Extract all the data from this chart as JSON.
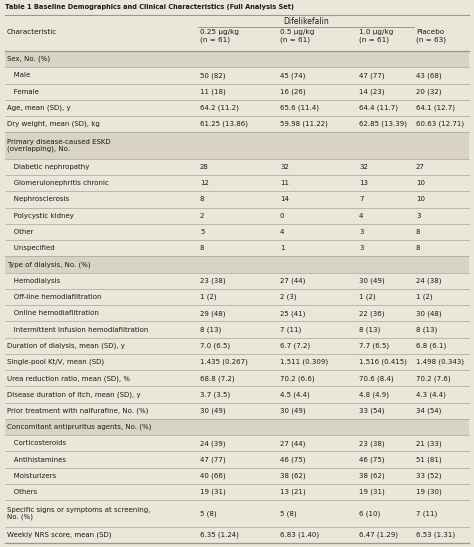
{
  "title": "Table 1 Baseline Demographics and Clinical Characteristics (Full Analysis Set)",
  "col_headers": [
    "Characteristic",
    "0.25 μg/kg\n(n = 61)",
    "0.5 μg/kg\n(n = 61)",
    "1.0 μg/kg\n(n = 61)",
    "Placebo\n(n = 63)"
  ],
  "group_header": "Difelikefalin",
  "rows": [
    {
      "label": "Sex, No. (%)",
      "indent": 0,
      "section": true,
      "vals": [
        "",
        "",
        "",
        ""
      ],
      "double_line": false
    },
    {
      "label": "   Male",
      "indent": 1,
      "section": false,
      "vals": [
        "50 (82)",
        "45 (74)",
        "47 (77)",
        "43 (68)"
      ],
      "double_line": false
    },
    {
      "label": "   Female",
      "indent": 1,
      "section": false,
      "vals": [
        "11 (18)",
        "16 (26)",
        "14 (23)",
        "20 (32)"
      ],
      "double_line": false
    },
    {
      "label": "Age, mean (SD), y",
      "indent": 0,
      "section": false,
      "vals": [
        "64.2 (11.2)",
        "65.6 (11.4)",
        "64.4 (11.7)",
        "64.1 (12.7)"
      ],
      "double_line": false
    },
    {
      "label": "Dry weight, mean (SD), kg",
      "indent": 0,
      "section": false,
      "vals": [
        "61.25 (13.86)",
        "59.98 (11.22)",
        "62.85 (13.39)",
        "60.63 (12.71)"
      ],
      "double_line": false
    },
    {
      "label": "Primary disease-caused ESKD\n(overlapping), No.",
      "indent": 0,
      "section": true,
      "vals": [
        "",
        "",
        "",
        ""
      ],
      "double_line": true
    },
    {
      "label": "   Diabetic nephropathy",
      "indent": 1,
      "section": false,
      "vals": [
        "28",
        "32",
        "32",
        "27"
      ],
      "double_line": false
    },
    {
      "label": "   Glomerulonephritis chronic",
      "indent": 1,
      "section": false,
      "vals": [
        "12",
        "11",
        "13",
        "10"
      ],
      "double_line": false
    },
    {
      "label": "   Nephrosclerosis",
      "indent": 1,
      "section": false,
      "vals": [
        "8",
        "14",
        "7",
        "10"
      ],
      "double_line": false
    },
    {
      "label": "   Polycystic kidney",
      "indent": 1,
      "section": false,
      "vals": [
        "2",
        "0",
        "4",
        "3"
      ],
      "double_line": false
    },
    {
      "label": "   Other",
      "indent": 1,
      "section": false,
      "vals": [
        "5",
        "4",
        "3",
        "8"
      ],
      "double_line": false
    },
    {
      "label": "   Unspecified",
      "indent": 1,
      "section": false,
      "vals": [
        "8",
        "1",
        "3",
        "8"
      ],
      "double_line": false
    },
    {
      "label": "Type of dialysis, No. (%)",
      "indent": 0,
      "section": true,
      "vals": [
        "",
        "",
        "",
        ""
      ],
      "double_line": false
    },
    {
      "label": "   Hemodialysis",
      "indent": 1,
      "section": false,
      "vals": [
        "23 (38)",
        "27 (44)",
        "30 (49)",
        "24 (38)"
      ],
      "double_line": false
    },
    {
      "label": "   Off-line hemodiafiltration",
      "indent": 1,
      "section": false,
      "vals": [
        "1 (2)",
        "2 (3)",
        "1 (2)",
        "1 (2)"
      ],
      "double_line": false
    },
    {
      "label": "   Online hemodiafiltration",
      "indent": 1,
      "section": false,
      "vals": [
        "29 (48)",
        "25 (41)",
        "22 (36)",
        "30 (48)"
      ],
      "double_line": false
    },
    {
      "label": "   Intermittent infusion hemodiafiltration",
      "indent": 1,
      "section": false,
      "vals": [
        "8 (13)",
        "7 (11)",
        "8 (13)",
        "8 (13)"
      ],
      "double_line": false
    },
    {
      "label": "Duration of dialysis, mean (SD), y",
      "indent": 0,
      "section": false,
      "vals": [
        "7.0 (6.5)",
        "6.7 (7.2)",
        "7.7 (6.5)",
        "6.8 (6.1)"
      ],
      "double_line": false
    },
    {
      "label": "Single-pool Kt/V, mean (SD)",
      "indent": 0,
      "section": false,
      "vals": [
        "1.435 (0.267)",
        "1.511 (0.309)",
        "1.516 (0.415)",
        "1.498 (0.343)"
      ],
      "double_line": false
    },
    {
      "label": "Urea reduction ratio, mean (SD), %",
      "indent": 0,
      "section": false,
      "vals": [
        "68.8 (7.2)",
        "70.2 (6.6)",
        "70.6 (8.4)",
        "70.2 (7.6)"
      ],
      "double_line": false
    },
    {
      "label": "Disease duration of itch, mean (SD), y",
      "indent": 0,
      "section": false,
      "vals": [
        "3.7 (3.5)",
        "4.5 (4.4)",
        "4.8 (4.9)",
        "4.3 (4.4)"
      ],
      "double_line": false
    },
    {
      "label": "Prior treatment with nalfurafine, No. (%)",
      "indent": 0,
      "section": false,
      "vals": [
        "30 (49)",
        "30 (49)",
        "33 (54)",
        "34 (54)"
      ],
      "double_line": false
    },
    {
      "label": "Concomitant antipruritus agents, No. (%)",
      "indent": 0,
      "section": true,
      "vals": [
        "",
        "",
        "",
        ""
      ],
      "double_line": false
    },
    {
      "label": "   Corticosteroids",
      "indent": 1,
      "section": false,
      "vals": [
        "24 (39)",
        "27 (44)",
        "23 (38)",
        "21 (33)"
      ],
      "double_line": false
    },
    {
      "label": "   Antihistamines",
      "indent": 1,
      "section": false,
      "vals": [
        "47 (77)",
        "46 (75)",
        "46 (75)",
        "51 (81)"
      ],
      "double_line": false
    },
    {
      "label": "   Moisturizers",
      "indent": 1,
      "section": false,
      "vals": [
        "40 (66)",
        "38 (62)",
        "38 (62)",
        "33 (52)"
      ],
      "double_line": false
    },
    {
      "label": "   Others",
      "indent": 1,
      "section": false,
      "vals": [
        "19 (31)",
        "13 (21)",
        "19 (31)",
        "19 (30)"
      ],
      "double_line": false
    },
    {
      "label": "Specific signs or symptoms at screening,\nNo. (%)",
      "indent": 0,
      "section": false,
      "vals": [
        "5 (8)",
        "5 (8)",
        "6 (10)",
        "7 (11)"
      ],
      "double_line": true
    },
    {
      "label": "Weekly NRS score, mean (SD)",
      "indent": 0,
      "section": false,
      "vals": [
        "6.35 (1.24)",
        "6.83 (1.40)",
        "6.47 (1.29)",
        "6.53 (1.31)"
      ],
      "double_line": false
    }
  ],
  "bg_color": "#eae6da",
  "section_bg": "#d8d3c5",
  "text_color": "#1a1a1a",
  "line_color": "#999880"
}
